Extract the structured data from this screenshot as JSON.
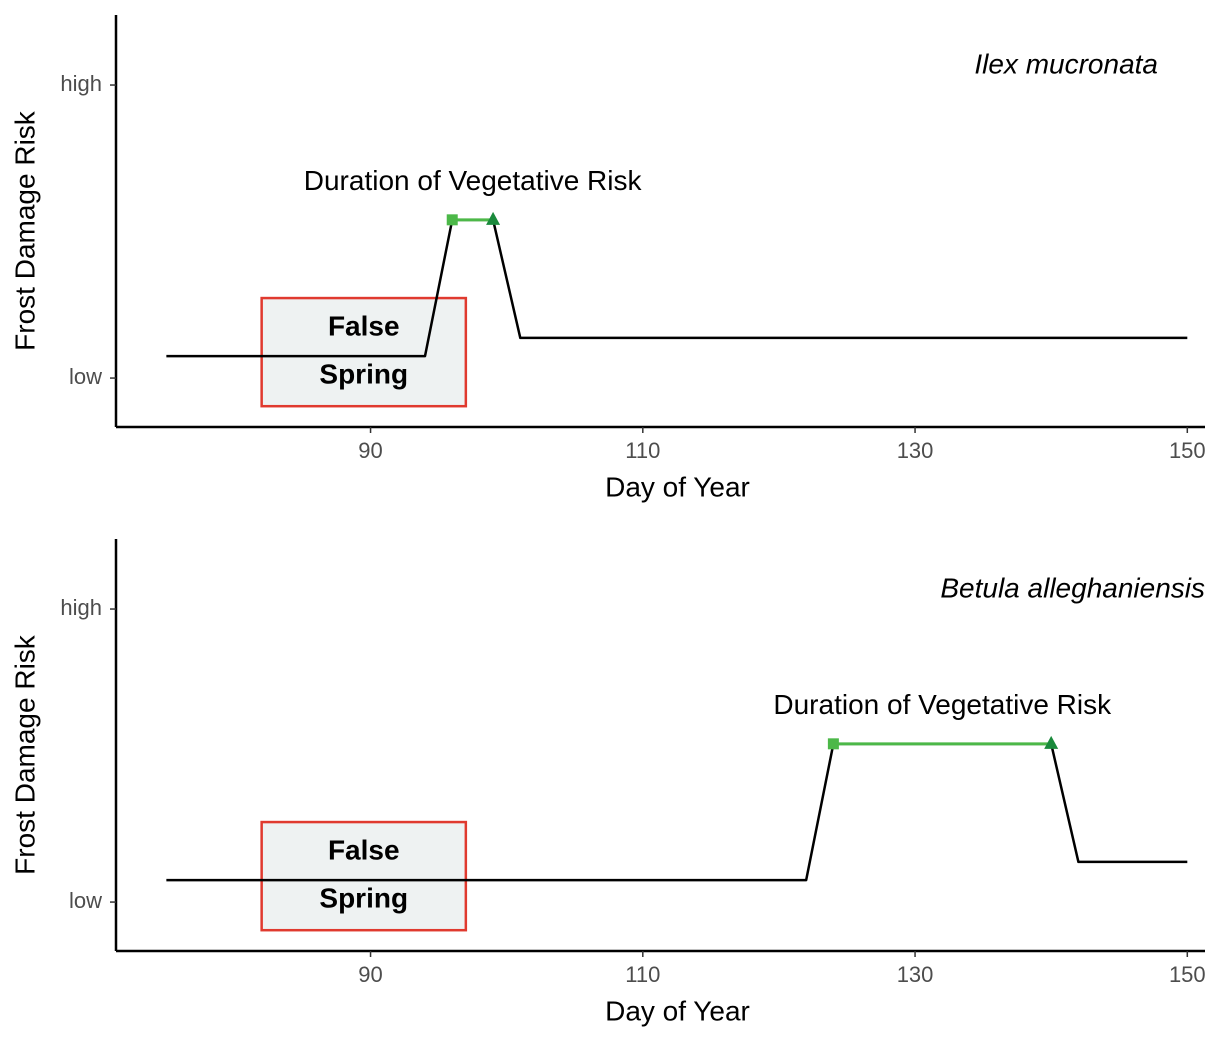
{
  "chart_data": [
    {
      "type": "line",
      "title": "Ilex mucronata",
      "xlabel": "Day of Year",
      "ylabel": "Frost Damage Risk",
      "x": [
        75,
        94,
        96,
        99,
        101,
        150
      ],
      "values": [
        0.75,
        0.75,
        5.4,
        5.4,
        1.37,
        1.37
      ],
      "color": "#000000",
      "xlim": [
        71.3,
        151.3
      ],
      "xticks": [
        90,
        110,
        130,
        150
      ],
      "ylim": [
        -1.67,
        12.39
      ],
      "yticks": [
        {
          "value": 0,
          "label": "low"
        },
        {
          "value": 10,
          "label": "high"
        }
      ],
      "annotation": "Duration of Vegetative Risk",
      "duration": {
        "start": 96,
        "end": 99,
        "level": 5.4,
        "color": "#4cb848",
        "start_color": "#4cb848",
        "end_color": "#1a8a3c"
      },
      "false_spring": {
        "label": [
          "False",
          "Spring"
        ],
        "x": [
          82,
          97
        ],
        "y": [
          -0.96,
          2.73
        ],
        "fill": "#eef2f2",
        "stroke": "#e03a2f"
      }
    },
    {
      "type": "line",
      "title": "Betula alleghaniensis",
      "xlabel": "Day of Year",
      "ylabel": "Frost Damage Risk",
      "x": [
        75,
        122,
        124,
        140,
        142,
        150
      ],
      "values": [
        0.75,
        0.75,
        5.4,
        5.4,
        1.37,
        1.37
      ],
      "color": "#000000",
      "xlim": [
        71.3,
        151.3
      ],
      "xticks": [
        90,
        110,
        130,
        150
      ],
      "ylim": [
        -1.67,
        12.39
      ],
      "yticks": [
        {
          "value": 0,
          "label": "low"
        },
        {
          "value": 10,
          "label": "high"
        }
      ],
      "annotation": "Duration of Vegetative Risk",
      "duration": {
        "start": 124,
        "end": 140,
        "level": 5.4,
        "color": "#4cb848",
        "start_color": "#4cb848",
        "end_color": "#1a8a3c"
      },
      "false_spring": {
        "label": [
          "False",
          "Spring"
        ],
        "x": [
          82,
          97
        ],
        "y": [
          -0.96,
          2.73
        ],
        "fill": "#eef2f2",
        "stroke": "#e03a2f"
      }
    }
  ]
}
